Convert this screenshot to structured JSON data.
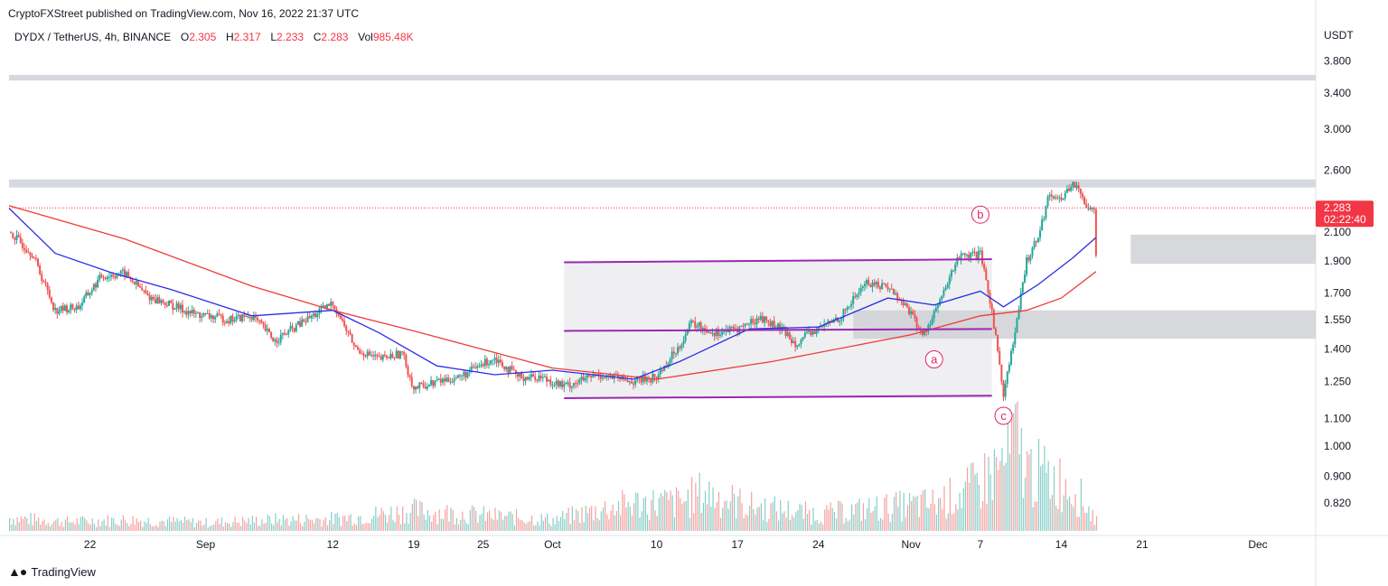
{
  "header": {
    "published": "CryptoFXStreet published on TradingView.com, Nov 16, 2022 21:37 UTC"
  },
  "legend": {
    "symbol": "DYDX / TetherUS, 4h, BINANCE",
    "o_label": "O",
    "o_value": "2.305",
    "h_label": "H",
    "h_value": "2.317",
    "l_label": "L",
    "l_value": "2.233",
    "c_label": "C",
    "c_value": "2.283",
    "vol_label": "Vol",
    "vol_value": "985.48K"
  },
  "footer": {
    "logo_text": "TradingView"
  },
  "colors": {
    "up": "#26a69a",
    "down": "#ef5350",
    "ema_fast": "#2a2ee8",
    "ema_slow": "#ef3b3b",
    "channel": "#9c27b0",
    "zone": "#d1d4dc",
    "price_tag": "#f23645",
    "wave_label": "#e91e63"
  },
  "chart_data": {
    "type": "candlestick",
    "symbol": "DYDX / TetherUS",
    "interval": "4h",
    "exchange": "BINANCE",
    "y_unit": "USDT",
    "y_scale": "log",
    "ylim": [
      0.74,
      4.3
    ],
    "y_ticks": [
      "3.800",
      "3.400",
      "3.000",
      "2.600",
      "2.100",
      "1.900",
      "1.700",
      "1.550",
      "1.400",
      "1.250",
      "1.100",
      "1.000",
      "0.900",
      "0.820"
    ],
    "x_ticks": [
      "22",
      "Sep",
      "12",
      "19",
      "25",
      "Oct",
      "10",
      "17",
      "24",
      "Nov",
      "7",
      "14",
      "21",
      "Dec"
    ],
    "x_tick_dates": [
      "2022-08-22",
      "2022-09-01",
      "2022-09-12",
      "2022-09-19",
      "2022-09-25",
      "2022-10-01",
      "2022-10-10",
      "2022-10-17",
      "2022-10-24",
      "2022-11-01",
      "2022-11-07",
      "2022-11-14",
      "2022-11-21",
      "2022-12-01"
    ],
    "xlim": [
      "2022-08-15",
      "2022-12-06"
    ],
    "last_price": "2.283",
    "countdown": "02:22:40",
    "close_path": [
      [
        "2022-08-15",
        2.1
      ],
      [
        "2022-08-17",
        1.95
      ],
      [
        "2022-08-19",
        1.6
      ],
      [
        "2022-08-21",
        1.62
      ],
      [
        "2022-08-23",
        1.8
      ],
      [
        "2022-08-25",
        1.82
      ],
      [
        "2022-08-27",
        1.68
      ],
      [
        "2022-08-29",
        1.63
      ],
      [
        "2022-08-31",
        1.58
      ],
      [
        "2022-09-03",
        1.55
      ],
      [
        "2022-09-05",
        1.57
      ],
      [
        "2022-09-07",
        1.44
      ],
      [
        "2022-09-09",
        1.52
      ],
      [
        "2022-09-12",
        1.64
      ],
      [
        "2022-09-14",
        1.4
      ],
      [
        "2022-09-16",
        1.35
      ],
      [
        "2022-09-18",
        1.38
      ],
      [
        "2022-09-19",
        1.22
      ],
      [
        "2022-09-21",
        1.25
      ],
      [
        "2022-09-23",
        1.27
      ],
      [
        "2022-09-26",
        1.36
      ],
      [
        "2022-09-28",
        1.27
      ],
      [
        "2022-09-30",
        1.27
      ],
      [
        "2022-10-02",
        1.23
      ],
      [
        "2022-10-05",
        1.28
      ],
      [
        "2022-10-08",
        1.25
      ],
      [
        "2022-10-10",
        1.27
      ],
      [
        "2022-10-12",
        1.42
      ],
      [
        "2022-10-13",
        1.53
      ],
      [
        "2022-10-15",
        1.48
      ],
      [
        "2022-10-17",
        1.5
      ],
      [
        "2022-10-19",
        1.56
      ],
      [
        "2022-10-21",
        1.49
      ],
      [
        "2022-10-22",
        1.43
      ],
      [
        "2022-10-24",
        1.5
      ],
      [
        "2022-10-26",
        1.57
      ],
      [
        "2022-10-28",
        1.76
      ],
      [
        "2022-10-30",
        1.74
      ],
      [
        "2022-11-01",
        1.59
      ],
      [
        "2022-11-02",
        1.46
      ],
      [
        "2022-11-04",
        1.72
      ],
      [
        "2022-11-05",
        1.92
      ],
      [
        "2022-11-07",
        1.94
      ],
      [
        "2022-11-08",
        1.6
      ],
      [
        "2022-11-09",
        1.2
      ],
      [
        "2022-11-10",
        1.48
      ],
      [
        "2022-11-11",
        1.9
      ],
      [
        "2022-11-12",
        2.08
      ],
      [
        "2022-11-13",
        2.4
      ],
      [
        "2022-11-14",
        2.35
      ],
      [
        "2022-11-15",
        2.5
      ],
      [
        "2022-11-16",
        2.32
      ],
      [
        "2022-11-17",
        2.283
      ]
    ],
    "ema_fast": [
      [
        "2022-08-15",
        2.28
      ],
      [
        "2022-08-19",
        1.95
      ],
      [
        "2022-08-24",
        1.82
      ],
      [
        "2022-08-29",
        1.72
      ],
      [
        "2022-09-05",
        1.57
      ],
      [
        "2022-09-12",
        1.6
      ],
      [
        "2022-09-16",
        1.48
      ],
      [
        "2022-09-21",
        1.32
      ],
      [
        "2022-09-26",
        1.28
      ],
      [
        "2022-10-01",
        1.3
      ],
      [
        "2022-10-08",
        1.26
      ],
      [
        "2022-10-12",
        1.34
      ],
      [
        "2022-10-18",
        1.5
      ],
      [
        "2022-10-24",
        1.51
      ],
      [
        "2022-10-30",
        1.67
      ],
      [
        "2022-11-03",
        1.63
      ],
      [
        "2022-11-07",
        1.71
      ],
      [
        "2022-11-09",
        1.62
      ],
      [
        "2022-11-12",
        1.75
      ],
      [
        "2022-11-15",
        1.92
      ],
      [
        "2022-11-17",
        2.06
      ]
    ],
    "ema_slow": [
      [
        "2022-08-15",
        2.3
      ],
      [
        "2022-08-25",
        2.05
      ],
      [
        "2022-09-05",
        1.74
      ],
      [
        "2022-09-12",
        1.6
      ],
      [
        "2022-09-19",
        1.49
      ],
      [
        "2022-10-01",
        1.31
      ],
      [
        "2022-10-10",
        1.26
      ],
      [
        "2022-10-20",
        1.34
      ],
      [
        "2022-11-01",
        1.47
      ],
      [
        "2022-11-07",
        1.57
      ],
      [
        "2022-11-11",
        1.6
      ],
      [
        "2022-11-14",
        1.67
      ],
      [
        "2022-11-17",
        1.83
      ]
    ],
    "volume": {
      "scale_max": 100,
      "bars_relative_0_100": [
        [
          "2022-08-15",
          14
        ],
        [
          "2022-08-20",
          10
        ],
        [
          "2022-08-25",
          12
        ],
        [
          "2022-09-01",
          9
        ],
        [
          "2022-09-07",
          12
        ],
        [
          "2022-09-12",
          13
        ],
        [
          "2022-09-19",
          22
        ],
        [
          "2022-09-26",
          16
        ],
        [
          "2022-10-01",
          12
        ],
        [
          "2022-10-05",
          23
        ],
        [
          "2022-10-08",
          30
        ],
        [
          "2022-10-12",
          31
        ],
        [
          "2022-10-14",
          42
        ],
        [
          "2022-10-18",
          27
        ],
        [
          "2022-10-24",
          18
        ],
        [
          "2022-10-30",
          26
        ],
        [
          "2022-11-03",
          30
        ],
        [
          "2022-11-06",
          44
        ],
        [
          "2022-11-09",
          73
        ],
        [
          "2022-11-10",
          100
        ],
        [
          "2022-11-11",
          66
        ],
        [
          "2022-11-13",
          58
        ],
        [
          "2022-11-15",
          47
        ],
        [
          "2022-11-17",
          12
        ]
      ]
    },
    "resistance_zones": [
      [
        3.55,
        3.62
      ],
      [
        2.45,
        2.52
      ]
    ],
    "demand_zones": [
      {
        "from": "2022-11-20",
        "to": "2022-12-06",
        "y": [
          1.88,
          2.08
        ]
      },
      {
        "from": "2022-10-27",
        "to": "2022-12-06",
        "y": [
          1.45,
          1.6
        ]
      }
    ],
    "range_box": {
      "from": "2022-10-02",
      "to": "2022-11-08",
      "y": [
        1.18,
        1.9
      ]
    },
    "channel_lines": [
      {
        "from": [
          "2022-10-02",
          1.89
        ],
        "to": [
          "2022-11-08",
          1.91
        ]
      },
      {
        "from": [
          "2022-10-02",
          1.49
        ],
        "to": [
          "2022-11-08",
          1.5
        ]
      },
      {
        "from": [
          "2022-10-02",
          1.18
        ],
        "to": [
          "2022-11-08",
          1.19
        ]
      }
    ],
    "wave_labels": [
      {
        "text": "b",
        "date": "2022-11-07",
        "price": 2.23
      },
      {
        "text": "a",
        "date": "2022-11-03",
        "price": 1.35
      },
      {
        "text": "c",
        "date": "2022-11-09",
        "price": 1.11
      }
    ]
  }
}
